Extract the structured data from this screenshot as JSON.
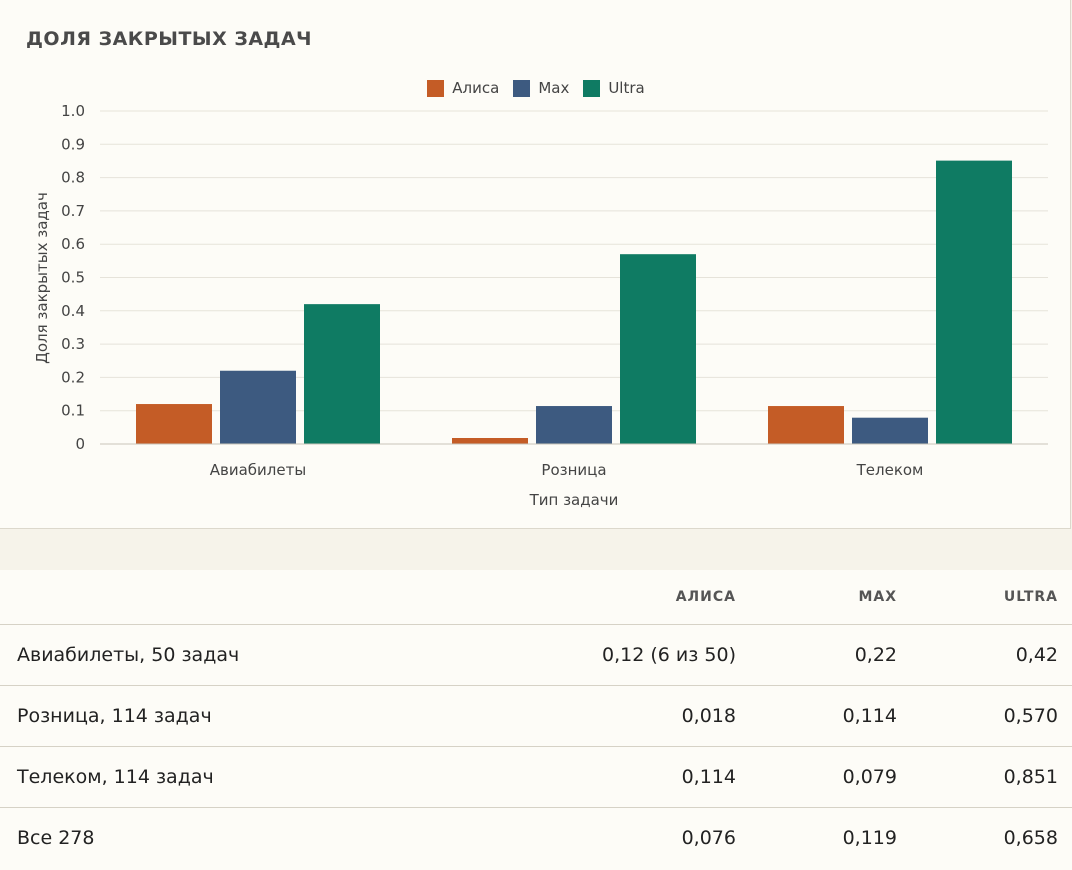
{
  "chart_data": {
    "type": "bar",
    "title": "ДОЛЯ ЗАКРЫТЫХ ЗАДАЧ",
    "xlabel": "Тип задачи",
    "ylabel": "Доля закрытых задач",
    "ylim": [
      0,
      1.0
    ],
    "yticks": [
      "0",
      "0.1",
      "0.2",
      "0.3",
      "0.4",
      "0.5",
      "0.6",
      "0.7",
      "0.8",
      "0.9",
      "1.0"
    ],
    "categories": [
      "Авиабилеты",
      "Розница",
      "Телеком"
    ],
    "series": [
      {
        "name": "Алиса",
        "color": "#c45c26",
        "values": [
          0.12,
          0.018,
          0.114
        ]
      },
      {
        "name": "Max",
        "color": "#3d5a80",
        "values": [
          0.22,
          0.114,
          0.079
        ]
      },
      {
        "name": "Ultra",
        "color": "#0f7b63",
        "values": [
          0.42,
          0.57,
          0.851
        ]
      }
    ],
    "grid": true,
    "legend": "top-center"
  },
  "table": {
    "headers": [
      "",
      "Алиса",
      "Max",
      "Ultra"
    ],
    "rows": [
      [
        "Авиабилеты, 50 задач",
        "0,12 (6 из 50)",
        "0,22",
        "0,42"
      ],
      [
        "Розница, 114 задач",
        "0,018",
        "0,114",
        "0,570"
      ],
      [
        "Телеком, 114 задач",
        "0,114",
        "0,079",
        "0,851"
      ],
      [
        "Все 278",
        "0,076",
        "0,119",
        "0,658"
      ]
    ]
  }
}
